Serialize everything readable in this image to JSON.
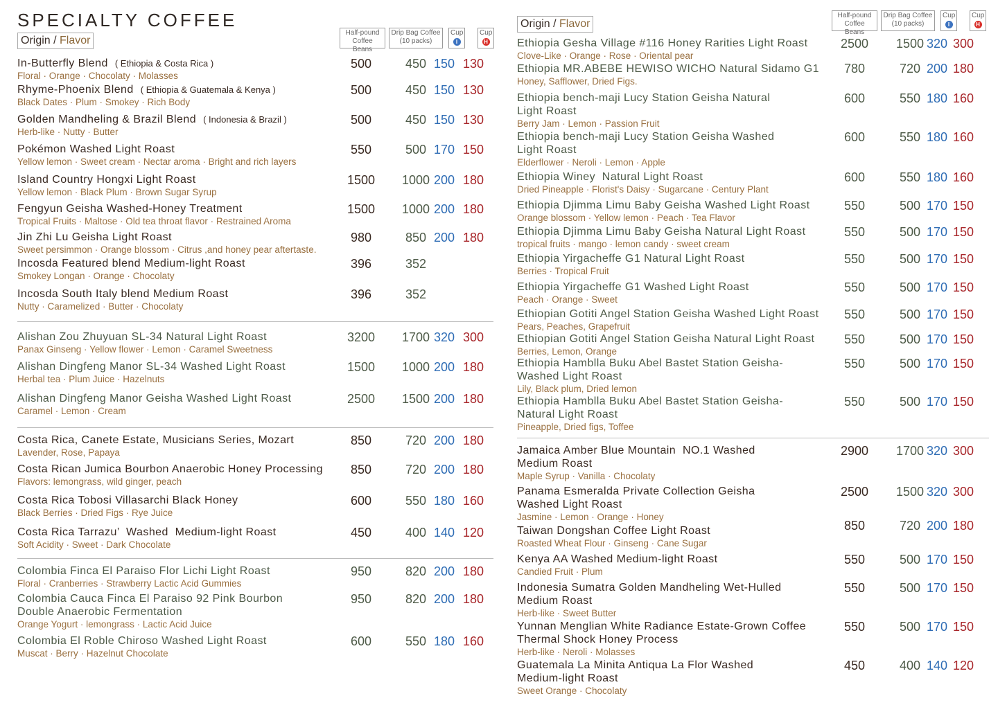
{
  "title": "SPECIALTY COFFEE",
  "origin_label": "Origin",
  "flavor_label": "Flavor",
  "headers": {
    "half": [
      "Half-pound",
      "Coffee Beans"
    ],
    "drip": [
      "Drip Bag Coffee",
      "(10 packs)"
    ],
    "cup": "Cup",
    "iced": "I",
    "hot": "H"
  },
  "colors": {
    "dark": "#3a2a22",
    "green": "#4e5b48",
    "flavor": "#9a7040",
    "iced": "#2f6db5",
    "hot": "#a8262a",
    "iced_dot": "#3d73c0",
    "hot_dot": "#d9302a"
  },
  "left": [
    {
      "tone": "dark",
      "items": [
        {
          "name": "In-Butterfly Blend",
          "origin": "( Ethiopia & Costa Rica )",
          "flavor": "Floral · Orange · Chocolaty · Molasses",
          "prices": [
            "500",
            "450",
            "150",
            "130"
          ]
        },
        {
          "name": "Rhyme-Phoenix Blend",
          "origin": "( Ethiopia & Guatemala & Kenya )",
          "flavor": "Black Dates · Plum · Smokey · Rich Body",
          "prices": [
            "500",
            "450",
            "150",
            "130"
          ]
        },
        {
          "name": "Golden Mandheling & Brazil Blend",
          "origin": "( Indonesia & Brazil )",
          "flavor": "Herb-like · Nutty · Butter",
          "prices": [
            "500",
            "450",
            "150",
            "130"
          ]
        },
        {
          "name": "Pokémon Washed Light Roast",
          "flavor": "Yellow lemon · Sweet cream · Nectar aroma · Bright and rich layers",
          "prices": [
            "550",
            "500",
            "170",
            "150"
          ]
        },
        {
          "name": "Island Country Hongxi Light Roast",
          "flavor": "Yellow lemon · Black Plum · Brown Sugar Syrup",
          "prices": [
            "1500",
            "1000",
            "200",
            "180"
          ]
        },
        {
          "name": "Fengyun Geisha Washed-Honey Treatment",
          "flavor": "Tropical Fruits · Maltose · Old tea throat flavor · Restrained Aroma",
          "prices": [
            "1500",
            "1000",
            "200",
            "180"
          ]
        },
        {
          "name": "Jin Zhi Lu Geisha Light Roast",
          "flavor": "Sweet persimmon · Orange blossom · Citrus ,and honey pear aftertaste.",
          "prices": [
            "980",
            "850",
            "200",
            "180"
          ]
        },
        {
          "name": "Incosda Featured blend Medium-light Roast",
          "flavor": "Smokey Longan · Orange · Chocolaty",
          "prices": [
            "396",
            "352",
            "",
            ""
          ]
        },
        {
          "name": "Incosda South Italy blend Medium Roast",
          "flavor": "Nutty · Caramelized · Butter · Chocolaty",
          "prices": [
            "396",
            "352",
            "",
            ""
          ]
        }
      ]
    },
    {
      "tone": "green",
      "items": [
        {
          "name": "Alishan Zou Zhuyuan SL-34 Natural Light Roast",
          "flavor": "Panax Ginseng · Yellow flower · Lemon · Caramel Sweetness",
          "prices": [
            "3200",
            "1700",
            "320",
            "300"
          ]
        },
        {
          "name": "Alishan Dingfeng Manor SL-34 Washed Light Roast",
          "flavor": "Herbal tea · Plum Juice · Hazelnuts",
          "prices": [
            "1500",
            "1000",
            "200",
            "180"
          ]
        },
        {
          "name": "Alishan Dingfeng Manor Geisha Washed Light Roast",
          "flavor": "Caramel · Lemon · Cream",
          "prices": [
            "2500",
            "1500",
            "200",
            "180"
          ]
        }
      ]
    },
    {
      "tone": "dark",
      "items": [
        {
          "name": "Costa Rica, Canete Estate, Musicians Series, Mozart",
          "flavor": "Lavender, Rose, Papaya",
          "prices": [
            "850",
            "720",
            "200",
            "180"
          ]
        },
        {
          "name": "Costa Rican Jumica Bourbon Anaerobic Honey Processing",
          "flavor": "Flavors: lemongrass, wild ginger, peach",
          "prices": [
            "850",
            "720",
            "200",
            "180"
          ]
        },
        {
          "name": "Costa Rica Tobosi Villasarchi Black Honey",
          "flavor": "Black Berries · Dried Figs · Rye Juice",
          "prices": [
            "600",
            "550",
            "180",
            "160"
          ]
        },
        {
          "name": "Costa Rica Tarrazu’  Washed  Medium-light Roast",
          "flavor": "Soft Acidity · Sweet · Dark Chocolate",
          "prices": [
            "450",
            "400",
            "140",
            "120"
          ]
        }
      ]
    },
    {
      "tone": "green",
      "items": [
        {
          "name": "Colombia Finca El Paraiso Flor Lichi Light Roast",
          "flavor": "Floral · Cranberries · Strawberry Lactic Acid Gummies",
          "prices": [
            "950",
            "820",
            "200",
            "180"
          ]
        },
        {
          "name": "Colombia Cauca Finca El Paraiso 92 Pink Bourbon\nDouble Anaerobic Fermentation",
          "flavor": "Orange Yogurt · lemongrass · Lactic Acid Juice",
          "prices": [
            "950",
            "820",
            "200",
            "180"
          ]
        },
        {
          "name": "Colombia El Roble Chiroso Washed Light Roast",
          "flavor": "Muscat · Berry · Hazelnut Chocolate",
          "prices": [
            "600",
            "550",
            "180",
            "160"
          ]
        }
      ]
    }
  ],
  "right": [
    {
      "tone": "green",
      "items": [
        {
          "name": "Ethiopia Gesha Village #116 Honey Rarities Light Roast",
          "flavor": "Clove-Like · Orange · Rose · Oriental pear",
          "prices": [
            "2500",
            "1500",
            "320",
            "300"
          ]
        },
        {
          "name": "Ethiopia MR.ABEBE HEWISO WICHO Natural Sidamo G1",
          "flavor": "Honey, Safflower, Dried Figs.",
          "prices": [
            "780",
            "720",
            "200",
            "180"
          ]
        },
        {
          "name": "Ethiopia bench-maji Lucy Station Geisha Natural\nLight Roast",
          "flavor": "Berry Jam · Lemon · Passion Fruit",
          "prices": [
            "600",
            "550",
            "180",
            "160"
          ]
        },
        {
          "name": "Ethiopia bench-maji Lucy Station Geisha Washed\nLight Roast",
          "flavor": "Elderflower · Neroli · Lemon · Apple",
          "prices": [
            "600",
            "550",
            "180",
            "160"
          ]
        },
        {
          "name": "Ethiopia Winey  Natural Light Roast",
          "flavor": "Dried Pineapple · Florist's Daisy · Sugarcane · Century Plant",
          "prices": [
            "600",
            "550",
            "180",
            "160"
          ]
        },
        {
          "name": "Ethiopia Djimma Limu Baby Geisha Washed Light Roast",
          "flavor": "Orange blossom · Yellow lemon · Peach · Tea Flavor",
          "prices": [
            "550",
            "500",
            "170",
            "150"
          ]
        },
        {
          "name": "Ethiopia Djimma Limu Baby Geisha Natural Light Roast",
          "flavor": "tropical fruits · mango · lemon candy · sweet cream",
          "prices": [
            "550",
            "500",
            "170",
            "150"
          ]
        },
        {
          "name": "Ethiopia Yirgacheffe G1 Natural Light Roast",
          "flavor": "Berries · Tropical Fruit",
          "prices": [
            "550",
            "500",
            "170",
            "150"
          ]
        },
        {
          "name": "Ethiopia Yirgacheffe G1 Washed Light Roast",
          "flavor": "Peach · Orange · Sweet",
          "prices": [
            "550",
            "500",
            "170",
            "150"
          ]
        },
        {
          "name": "Ethiopian Gotiti Angel Station Geisha Washed Light Roast",
          "flavor": "Pears, Peaches, Grapefruit",
          "prices": [
            "550",
            "500",
            "170",
            "150"
          ]
        },
        {
          "name": "Ethiopian Gotiti Angel Station Geisha Natural Light Roast",
          "flavor": "Berries, Lemon, Orange",
          "prices": [
            "550",
            "500",
            "170",
            "150"
          ]
        },
        {
          "name": "Ethiopia Hamblla Buku Abel Bastet Station Geisha-\nWashed Light Roast",
          "flavor": "Lily, Black plum, Dried lemon",
          "prices": [
            "550",
            "500",
            "170",
            "150"
          ]
        },
        {
          "name": "Ethiopia Hamblla Buku Abel Bastet Station Geisha-\nNatural Light Roast",
          "flavor": "Pineapple, Dried figs, Toffee",
          "prices": [
            "550",
            "500",
            "170",
            "150"
          ]
        }
      ]
    },
    {
      "tone": "dark",
      "items": [
        {
          "name": "Jamaica Amber Blue Mountain  NO.1 Washed\nMedium Roast",
          "flavor": "Maple Syrup · Vanilla · Chocolaty",
          "prices": [
            "2900",
            "1700",
            "320",
            "300"
          ]
        },
        {
          "name": "Panama Esmeralda Private Collection Geisha\nWashed Light Roast",
          "flavor": "Jasmine · Lemon · Orange · Honey",
          "prices": [
            "2500",
            "1500",
            "320",
            "300"
          ]
        },
        {
          "name": "Taiwan Dongshan Coffee Light Roast",
          "flavor": "Roasted Wheat Flour · Ginseng · Cane Sugar",
          "prices": [
            "850",
            "720",
            "200",
            "180"
          ]
        },
        {
          "name": "Kenya AA Washed Medium-light Roast",
          "flavor": "Candied Fruit · Plum",
          "prices": [
            "550",
            "500",
            "170",
            "150"
          ]
        },
        {
          "name": "Indonesia Sumatra Golden Mandheling Wet-Hulled\nMedium Roast",
          "flavor": "Herb-like · Sweet Butter",
          "prices": [
            "550",
            "500",
            "170",
            "150"
          ]
        },
        {
          "name": "Yunnan Menglian White Radiance Estate-Grown Coffee\nThermal Shock Honey Process",
          "flavor": "Herb-like · Neroli · Molasses",
          "prices": [
            "550",
            "500",
            "170",
            "150"
          ]
        },
        {
          "name": "Guatemala La Minita Antiqua La Flor Washed\nMedium-light Roast",
          "flavor": "Sweet Orange · Chocolaty",
          "prices": [
            "450",
            "400",
            "140",
            "120"
          ]
        }
      ]
    }
  ]
}
